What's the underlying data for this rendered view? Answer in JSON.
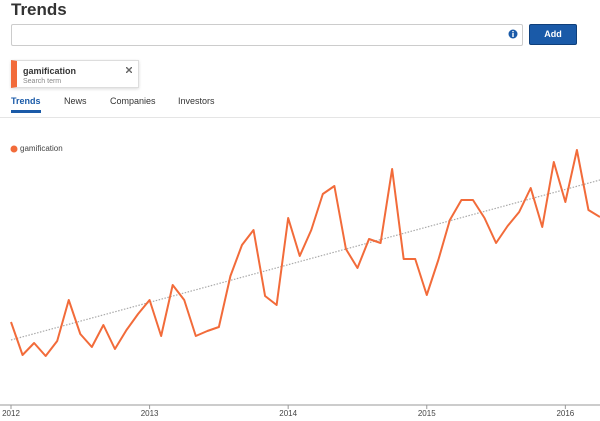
{
  "header": {
    "title": "Trends",
    "button": "Add"
  },
  "tag": {
    "label": "gamification",
    "sublabel": "Search term"
  },
  "tabs": [
    "Trends",
    "News",
    "Companies",
    "Investors"
  ],
  "chart_data": {
    "type": "line",
    "categories": [
      "2012",
      null,
      null,
      null,
      null,
      null,
      null,
      null,
      null,
      null,
      null,
      null,
      "2013",
      null,
      null,
      null,
      null,
      null,
      null,
      null,
      null,
      null,
      null,
      null,
      "2014",
      null,
      null,
      null,
      null,
      null,
      null,
      null,
      null,
      null,
      null,
      null,
      "2015",
      null,
      null,
      null,
      null,
      null,
      null,
      null,
      null,
      null,
      null,
      null,
      "2016",
      null,
      null,
      null
    ],
    "series": [
      {
        "name": "gamification",
        "color": "#f26b3a",
        "values": [
          78,
          45,
          57,
          44,
          59,
          100,
          66,
          53,
          75,
          51,
          70,
          86,
          100,
          64,
          115,
          100,
          64,
          69,
          73,
          124,
          155,
          170,
          104,
          95,
          182,
          144,
          170,
          206,
          214,
          151,
          132,
          161,
          157,
          231,
          141,
          141,
          105,
          140,
          180,
          200,
          200,
          182,
          157,
          174,
          188,
          212,
          173,
          238,
          198,
          250,
          190,
          183
        ]
      }
    ],
    "trendline": [
      60,
      220
    ],
    "ylim": [
      0,
      260
    ]
  }
}
